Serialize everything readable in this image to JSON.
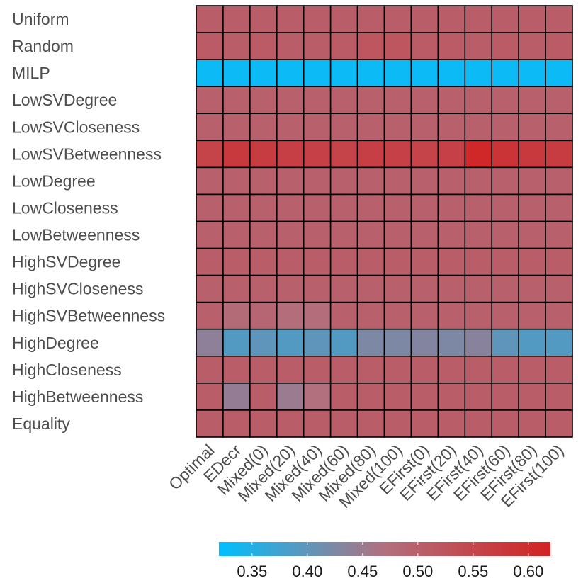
{
  "chart_data": {
    "type": "heatmap",
    "rows": [
      "Uniform",
      "Random",
      "MILP",
      "LowSVDegree",
      "LowSVCloseness",
      "LowSVBetweenness",
      "LowDegree",
      "LowCloseness",
      "LowBetweenness",
      "HighSVDegree",
      "HighSVCloseness",
      "HighSVBetweenness",
      "HighDegree",
      "HighCloseness",
      "HighBetweenness",
      "Equality"
    ],
    "columns": [
      "Optimal",
      "EDecr",
      "Mixed(0)",
      "Mixed(20)",
      "Mixed(40)",
      "Mixed(60)",
      "Mixed(80)",
      "Mixed(100)",
      "EFirst(0)",
      "EFirst(20)",
      "EFirst(40)",
      "EFirst(60)",
      "EFirst(80)",
      "EFirst(100)"
    ],
    "values": [
      [
        0.505,
        0.505,
        0.505,
        0.505,
        0.505,
        0.505,
        0.505,
        0.505,
        0.505,
        0.505,
        0.505,
        0.505,
        0.505,
        0.505
      ],
      [
        0.51,
        0.505,
        0.51,
        0.505,
        0.505,
        0.51,
        0.52,
        0.52,
        0.51,
        0.51,
        0.505,
        0.51,
        0.505,
        0.51
      ],
      [
        0.33,
        0.33,
        0.33,
        0.33,
        0.33,
        0.33,
        0.33,
        0.33,
        0.33,
        0.33,
        0.33,
        0.33,
        0.33,
        0.33
      ],
      [
        0.5,
        0.5,
        0.5,
        0.5,
        0.5,
        0.5,
        0.5,
        0.5,
        0.5,
        0.5,
        0.5,
        0.5,
        0.5,
        0.5
      ],
      [
        0.5,
        0.5,
        0.5,
        0.5,
        0.5,
        0.5,
        0.5,
        0.5,
        0.5,
        0.5,
        0.5,
        0.5,
        0.5,
        0.5
      ],
      [
        0.555,
        0.575,
        0.57,
        0.565,
        0.56,
        0.555,
        0.565,
        0.56,
        0.555,
        0.56,
        0.61,
        0.585,
        0.575,
        0.57
      ],
      [
        0.5,
        0.5,
        0.5,
        0.5,
        0.5,
        0.5,
        0.5,
        0.5,
        0.5,
        0.5,
        0.5,
        0.5,
        0.5,
        0.5
      ],
      [
        0.5,
        0.5,
        0.5,
        0.5,
        0.5,
        0.5,
        0.5,
        0.5,
        0.5,
        0.5,
        0.5,
        0.5,
        0.5,
        0.5
      ],
      [
        0.5,
        0.5,
        0.5,
        0.5,
        0.5,
        0.5,
        0.5,
        0.5,
        0.5,
        0.5,
        0.5,
        0.5,
        0.5,
        0.5
      ],
      [
        0.505,
        0.505,
        0.505,
        0.505,
        0.505,
        0.505,
        0.505,
        0.505,
        0.505,
        0.505,
        0.505,
        0.505,
        0.505,
        0.505
      ],
      [
        0.5,
        0.5,
        0.5,
        0.5,
        0.5,
        0.5,
        0.5,
        0.5,
        0.5,
        0.5,
        0.5,
        0.5,
        0.5,
        0.5
      ],
      [
        0.5,
        0.48,
        0.49,
        0.475,
        0.475,
        0.5,
        0.5,
        0.5,
        0.5,
        0.5,
        0.5,
        0.5,
        0.5,
        0.5
      ],
      [
        0.44,
        0.39,
        0.4,
        0.39,
        0.4,
        0.39,
        0.425,
        0.425,
        0.43,
        0.425,
        0.435,
        0.4,
        0.39,
        0.39
      ],
      [
        0.505,
        0.505,
        0.505,
        0.505,
        0.505,
        0.505,
        0.505,
        0.505,
        0.505,
        0.505,
        0.505,
        0.505,
        0.505,
        0.505
      ],
      [
        0.505,
        0.445,
        0.505,
        0.45,
        0.47,
        0.505,
        0.505,
        0.505,
        0.505,
        0.505,
        0.505,
        0.505,
        0.505,
        0.505
      ],
      [
        0.505,
        0.505,
        0.505,
        0.505,
        0.505,
        0.505,
        0.505,
        0.505,
        0.505,
        0.505,
        0.505,
        0.505,
        0.505,
        0.505
      ]
    ],
    "color_scale": {
      "min": 0.32,
      "max": 0.62,
      "mid": 0.47,
      "low_color": "#00BFFF",
      "mid_color": "#B2707E",
      "high_color": "#D22222",
      "ticks": [
        0.35,
        0.4,
        0.45,
        0.5,
        0.55,
        0.6
      ],
      "tick_labels": [
        "0.35",
        "0.40",
        "0.45",
        "0.50",
        "0.55",
        "0.60"
      ]
    },
    "legend_position": "bottom",
    "title": "",
    "xlabel": "",
    "ylabel": ""
  }
}
